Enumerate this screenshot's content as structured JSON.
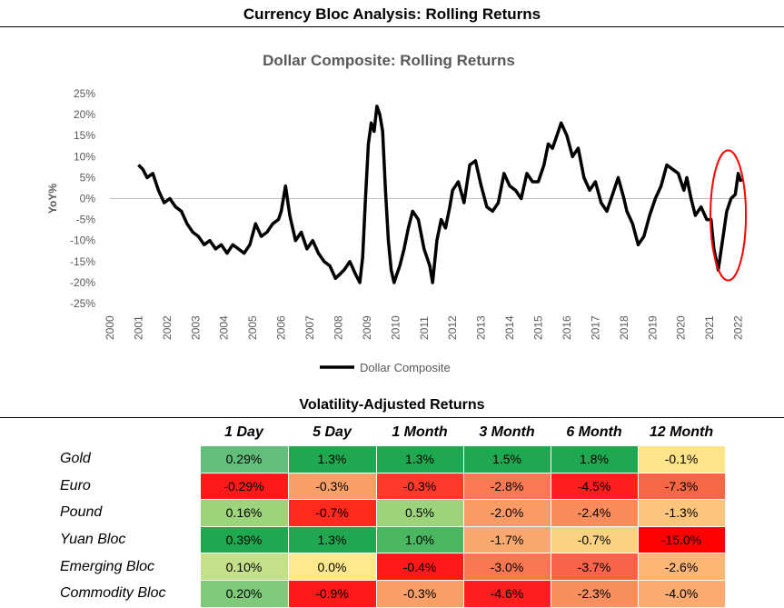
{
  "page_title": "Currency Bloc Analysis: Rolling Returns",
  "chart_data": {
    "type": "line",
    "title": "Dollar Composite: Rolling Returns",
    "xlabel": "",
    "ylabel": "YoY%",
    "xlim": [
      2000,
      2022.3
    ],
    "ylim": [
      -25,
      25
    ],
    "x_ticks": [
      2000,
      2001,
      2002,
      2003,
      2004,
      2005,
      2006,
      2007,
      2008,
      2009,
      2010,
      2011,
      2012,
      2013,
      2014,
      2015,
      2016,
      2017,
      2018,
      2019,
      2020,
      2021,
      2022
    ],
    "y_ticks": [
      -25,
      -20,
      -15,
      -10,
      -5,
      0,
      5,
      10,
      15,
      20,
      25
    ],
    "y_tick_labels": [
      "-25%",
      "-20%",
      "-15%",
      "-10%",
      "-5%",
      "0%",
      "5%",
      "10%",
      "15%",
      "20%",
      "25%"
    ],
    "legend": "bottom-center",
    "series": [
      {
        "name": "Dollar Composite",
        "color": "#000000",
        "x": [
          2001.0,
          2001.15,
          2001.3,
          2001.5,
          2001.7,
          2001.9,
          2002.1,
          2002.3,
          2002.5,
          2002.7,
          2002.9,
          2003.1,
          2003.3,
          2003.5,
          2003.7,
          2003.9,
          2004.1,
          2004.3,
          2004.5,
          2004.7,
          2004.9,
          2005.1,
          2005.3,
          2005.5,
          2005.7,
          2005.9,
          2006.0,
          2006.15,
          2006.3,
          2006.5,
          2006.7,
          2006.9,
          2007.1,
          2007.3,
          2007.5,
          2007.7,
          2007.9,
          2008.05,
          2008.2,
          2008.4,
          2008.6,
          2008.75,
          2008.85,
          2008.95,
          2009.05,
          2009.15,
          2009.25,
          2009.35,
          2009.45,
          2009.55,
          2009.65,
          2009.75,
          2009.85,
          2009.95,
          2010.05,
          2010.15,
          2010.3,
          2010.45,
          2010.6,
          2010.8,
          2011.0,
          2011.2,
          2011.3,
          2011.45,
          2011.6,
          2011.75,
          2011.9,
          2012.0,
          2012.2,
          2012.4,
          2012.6,
          2012.8,
          2013.0,
          2013.2,
          2013.4,
          2013.6,
          2013.8,
          2014.0,
          2014.2,
          2014.4,
          2014.6,
          2014.8,
          2015.0,
          2015.2,
          2015.35,
          2015.5,
          2015.65,
          2015.8,
          2016.0,
          2016.2,
          2016.4,
          2016.6,
          2016.8,
          2017.0,
          2017.2,
          2017.4,
          2017.6,
          2017.8,
          2018.0,
          2018.1,
          2018.3,
          2018.5,
          2018.7,
          2018.9,
          2019.1,
          2019.3,
          2019.5,
          2019.7,
          2019.9,
          2020.1,
          2020.2,
          2020.35,
          2020.5,
          2020.7,
          2020.9,
          2021.05,
          2021.15,
          2021.3,
          2021.45,
          2021.6,
          2021.75,
          2021.9,
          2022.0,
          2022.1
        ],
        "values": [
          8,
          7,
          5,
          6,
          2,
          -1,
          0,
          -2,
          -3,
          -6,
          -8,
          -9,
          -11,
          -10,
          -12,
          -11,
          -13,
          -11,
          -12,
          -13,
          -11,
          -6,
          -9,
          -8,
          -6,
          -5,
          -3,
          3,
          -4,
          -10,
          -8,
          -12,
          -10,
          -13,
          -15,
          -16,
          -19,
          -18,
          -17,
          -15,
          -18,
          -20,
          -14,
          0,
          13,
          18,
          16,
          22,
          20,
          16,
          2,
          -10,
          -17,
          -20,
          -18,
          -16,
          -12,
          -7,
          -3,
          -5,
          -12,
          -16,
          -20,
          -10,
          -5,
          -7,
          -2,
          2,
          4,
          -1,
          8,
          9,
          3,
          -2,
          -3,
          -1,
          6,
          3,
          2,
          0,
          6,
          4,
          4,
          8,
          13,
          12,
          15,
          18,
          15,
          10,
          12,
          5,
          2,
          4,
          -1,
          -3,
          1,
          5,
          0,
          -3,
          -6,
          -11,
          -9,
          -4,
          0,
          3,
          8,
          7,
          6,
          2,
          5,
          0,
          -4,
          -2,
          -5,
          -5,
          -12,
          -17,
          -10,
          -3,
          0,
          1,
          6,
          4
        ]
      }
    ],
    "annotations": [
      {
        "type": "ellipse",
        "color": "#ff0000",
        "x_center": 2021.65,
        "y_center": -4,
        "x_radius": 0.62,
        "y_radius": 15.5
      }
    ]
  },
  "volatility_table": {
    "title": "Volatility-Adjusted Returns",
    "columns": [
      "1 Day",
      "5 Day",
      "1 Month",
      "3 Month",
      "6 Month",
      "12 Month"
    ],
    "rows": [
      {
        "label": "Gold",
        "values": [
          "0.29%",
          "1.3%",
          "1.3%",
          "1.5%",
          "1.8%",
          "-0.1%"
        ],
        "colors": [
          "#63be7b",
          "#1fa84f",
          "#1fa84f",
          "#1fa84f",
          "#1fa84f",
          "#ffe48a"
        ]
      },
      {
        "label": "Euro",
        "values": [
          "-0.29%",
          "-0.3%",
          "-0.3%",
          "-2.8%",
          "-4.5%",
          "-7.3%"
        ],
        "colors": [
          "#ff1a1a",
          "#f8a068",
          "#ff3a2a",
          "#f97a52",
          "#ff1f1f",
          "#f66845"
        ]
      },
      {
        "label": "Pound",
        "values": [
          "0.16%",
          "-0.7%",
          "0.5%",
          "-2.0%",
          "-2.4%",
          "-1.3%"
        ],
        "colors": [
          "#9dd37a",
          "#ff2a1e",
          "#9dd37a",
          "#f99b66",
          "#f98b5c",
          "#fcc57c"
        ]
      },
      {
        "label": "Yuan Bloc",
        "values": [
          "0.39%",
          "1.3%",
          "1.0%",
          "-1.7%",
          "-0.7%",
          "-15.0%"
        ],
        "colors": [
          "#1fa84f",
          "#1fa84f",
          "#4ab760",
          "#f8a96e",
          "#fdd382",
          "#ff0000"
        ]
      },
      {
        "label": "Emerging Bloc",
        "values": [
          "0.10%",
          "0.0%",
          "-0.4%",
          "-3.0%",
          "-3.7%",
          "-2.6%"
        ],
        "colors": [
          "#c5e08a",
          "#ffe98c",
          "#ff1a1a",
          "#f97852",
          "#f7644a",
          "#fbb575"
        ]
      },
      {
        "label": "Commodity Bloc",
        "values": [
          "0.20%",
          "-0.9%",
          "-0.3%",
          "-4.6%",
          "-2.3%",
          "-4.0%"
        ],
        "colors": [
          "#7fc97a",
          "#ff1a1a",
          "#f8a068",
          "#ff1f1f",
          "#f98e5e",
          "#fbaa70"
        ]
      }
    ]
  }
}
